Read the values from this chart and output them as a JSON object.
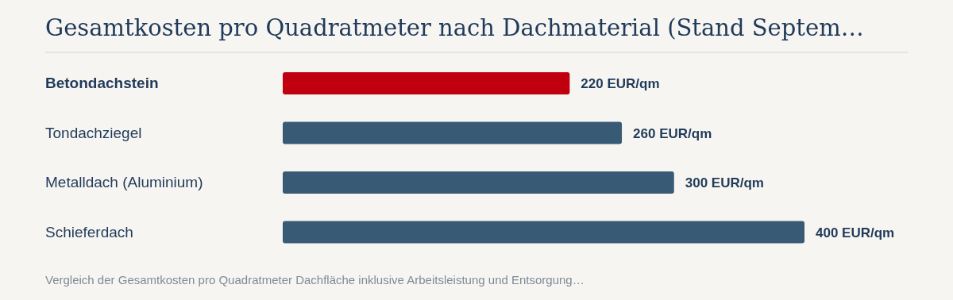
{
  "chart_data": {
    "type": "bar",
    "orientation": "horizontal",
    "title": "Gesamtkosten pro Quadratmeter nach Dachmaterial (Stand Septem…",
    "categories": [
      "Betondachstein",
      "Tondachziegel",
      "Metalldach (Aluminium)",
      "Schieferdach"
    ],
    "values": [
      220,
      260,
      300,
      400
    ],
    "colors": [
      "#c1000f",
      "#385a75",
      "#385a75",
      "#385a75"
    ],
    "value_labels": [
      "220 EUR/qm",
      "260 EUR/qm",
      "300 EUR/qm",
      "400 EUR/qm"
    ],
    "annotations": [
      "Vergleich der Gesamtkosten pro Quadratmeter Dachfläche inklusive Arbeitsleistung und Entsorgung…"
    ],
    "grid": false,
    "legend": false
  }
}
